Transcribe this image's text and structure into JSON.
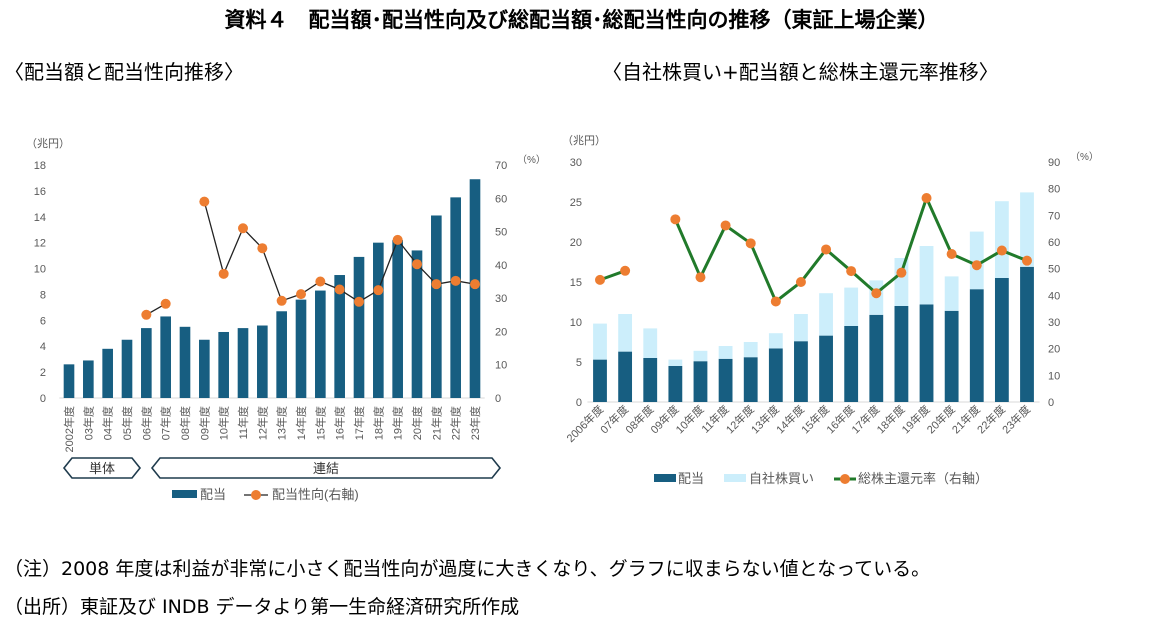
{
  "title": "資料４　配当額･配当性向及び総配当額･総配当性向の推移（東証上場企業）",
  "subtitle_left": "〈配当額と配当性向推移〉",
  "subtitle_right": "〈自社株買い+配当額と総株主還元率推移〉",
  "note": "（注）2008 年度は利益が非常に小さく配当性向が過度に大きくなり、グラフに収まらない値となっている。",
  "source": "（出所）東証及び INDB データより第一生命経済研究所作成",
  "colors": {
    "dividend": "#175E81",
    "buyback": "#CCEEFB",
    "dot": "#ED7D31",
    "line_left": "#222222",
    "line_right": "#217A2A"
  },
  "chart_data": [
    {
      "type": "bar",
      "title": "配当額と配当性向推移",
      "ylabel": "（兆円）",
      "y2label": "（%）",
      "ylim": [
        0,
        18
      ],
      "y2lim": [
        0,
        70
      ],
      "yticks": [
        "0",
        "2",
        "4",
        "6",
        "8",
        "10",
        "12",
        "14",
        "16",
        "18"
      ],
      "y2ticks": [
        "0",
        "10",
        "20",
        "30",
        "40",
        "50",
        "60",
        "70"
      ],
      "categories": [
        "2002年度",
        "03年度",
        "04年度",
        "05年度",
        "06年度",
        "07年度",
        "08年度",
        "09年度",
        "10年度",
        "11年度",
        "12年度",
        "13年度",
        "14年度",
        "15年度",
        "16年度",
        "17年度",
        "18年度",
        "19年度",
        "20年度",
        "21年度",
        "22年度",
        "23年度"
      ],
      "series": [
        {
          "name": "配当",
          "values": [
            2.6,
            2.9,
            3.8,
            4.5,
            5.4,
            6.3,
            5.5,
            4.5,
            5.1,
            5.4,
            5.6,
            6.7,
            7.6,
            8.3,
            9.5,
            10.9,
            12.0,
            12.2,
            11.4,
            14.1,
            15.5,
            16.9
          ]
        },
        {
          "name": "配当性向(右軸)",
          "axis": "right",
          "values": [
            null,
            null,
            null,
            null,
            25.0,
            28.3,
            null,
            59.0,
            37.3,
            51.0,
            45.0,
            29.2,
            31.2,
            35.0,
            32.6,
            28.9,
            32.4,
            47.5,
            40.2,
            34.2,
            35.2,
            34.2
          ]
        }
      ],
      "groups": [
        {
          "label": "単体"
        },
        {
          "label": "連結"
        }
      ]
    },
    {
      "type": "bar",
      "title": "自社株買い+配当額と総株主還元率推移",
      "stacked": true,
      "ylabel": "（兆円）",
      "y2label": "（%）",
      "ylim": [
        0,
        30
      ],
      "y2lim": [
        0,
        90
      ],
      "yticks": [
        "0",
        "5",
        "10",
        "15",
        "20",
        "25",
        "30"
      ],
      "y2ticks": [
        "0",
        "10",
        "20",
        "30",
        "40",
        "50",
        "60",
        "70",
        "80",
        "90"
      ],
      "categories": [
        "2006年度",
        "07年度",
        "08年度",
        "09年度",
        "10年度",
        "11年度",
        "12年度",
        "13年度",
        "14年度",
        "15年度",
        "16年度",
        "17年度",
        "18年度",
        "19年度",
        "20年度",
        "21年度",
        "22年度",
        "23年度"
      ],
      "series": [
        {
          "name": "配当",
          "values": [
            5.3,
            6.3,
            5.5,
            4.5,
            5.1,
            5.4,
            5.6,
            6.7,
            7.6,
            8.3,
            9.5,
            10.9,
            12.0,
            12.2,
            11.4,
            14.1,
            15.5,
            16.9
          ]
        },
        {
          "name": "自社株買い",
          "values": [
            4.5,
            4.7,
            3.7,
            0.8,
            1.3,
            1.6,
            1.9,
            1.9,
            3.4,
            5.3,
            4.8,
            4.3,
            6.0,
            7.3,
            4.3,
            7.2,
            9.6,
            9.3
          ]
        },
        {
          "name": "総株主還元率（右軸）",
          "axis": "right",
          "values": [
            45.8,
            49.2,
            null,
            68.5,
            46.8,
            66.2,
            59.5,
            37.7,
            45.0,
            57.2,
            49.1,
            40.8,
            48.5,
            76.5,
            55.5,
            51.3,
            56.8,
            53.0
          ]
        }
      ]
    }
  ]
}
